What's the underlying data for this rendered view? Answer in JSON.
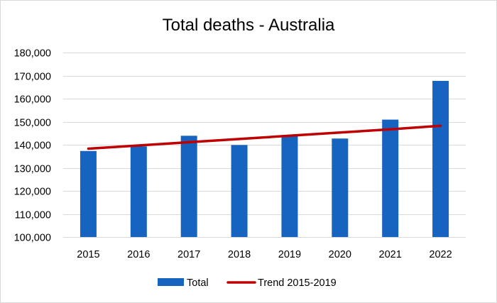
{
  "chart_data": {
    "type": "bar",
    "title": "Total deaths - Australia",
    "categories": [
      "2015",
      "2016",
      "2017",
      "2018",
      "2019",
      "2020",
      "2021",
      "2022"
    ],
    "series": [
      {
        "name": "Total",
        "type": "bar",
        "color": "#1664C0",
        "values": [
          137300,
          139300,
          143900,
          139900,
          143700,
          142700,
          150900,
          167700
        ]
      },
      {
        "name": "Trend 2015-2019",
        "type": "line",
        "color": "#C00000",
        "values": [
          138300,
          139700,
          141100,
          142500,
          143900,
          145300,
          146700,
          148200
        ]
      }
    ],
    "ylim": [
      100000,
      180000
    ],
    "yticks": [
      {
        "value": 100000,
        "label": "100,000"
      },
      {
        "value": 110000,
        "label": "110,000"
      },
      {
        "value": 120000,
        "label": "120,000"
      },
      {
        "value": 130000,
        "label": "130,000"
      },
      {
        "value": 140000,
        "label": "140,000"
      },
      {
        "value": 150000,
        "label": "150,000"
      },
      {
        "value": 160000,
        "label": "160,000"
      },
      {
        "value": 170000,
        "label": "170,000"
      },
      {
        "value": 180000,
        "label": "180,000"
      }
    ],
    "grid": true,
    "legend": "bottom",
    "xlabel": "",
    "ylabel": ""
  }
}
